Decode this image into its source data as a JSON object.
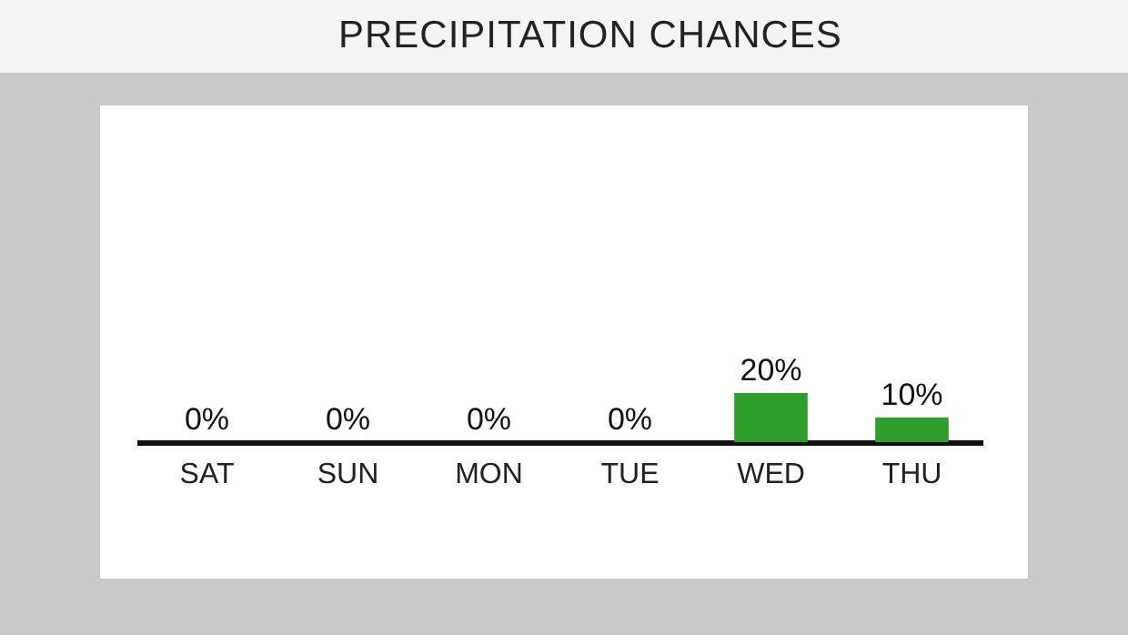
{
  "chart_data": {
    "type": "bar",
    "title": "PRECIPITATION CHANCES",
    "categories": [
      "SAT",
      "SUN",
      "MON",
      "TUE",
      "WED",
      "THU"
    ],
    "values": [
      0,
      0,
      0,
      0,
      20,
      10
    ],
    "value_labels": [
      "0%",
      "0%",
      "0%",
      "0%",
      "20%",
      "10%"
    ],
    "color": "#2e9e2a"
  }
}
